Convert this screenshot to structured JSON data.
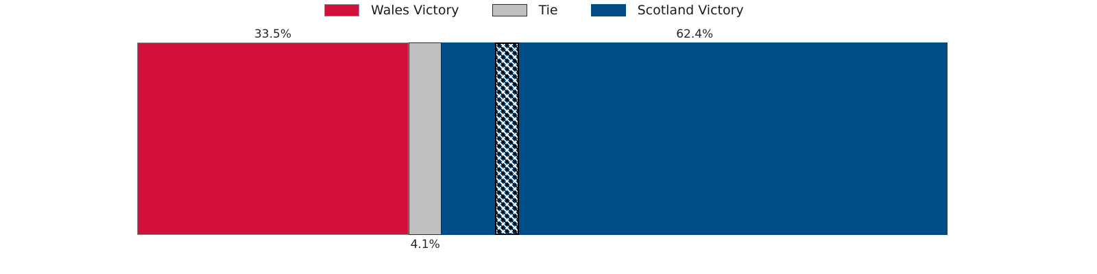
{
  "chart_data": {
    "type": "bar",
    "variant": "horizontal-stacked-single-bar",
    "title": "",
    "xlabel": "",
    "ylabel": "",
    "axes_visible": false,
    "legend_position": "top-center",
    "legend": [
      {
        "label": "Wales Victory",
        "color": "#d1113c",
        "border": "#909090"
      },
      {
        "label": "Tie",
        "color": "#c0c0c0",
        "border": "#2b2b2b"
      },
      {
        "label": "Scotland Victory",
        "color": "#004d87",
        "border": "#004d87"
      }
    ],
    "categories": [
      "Wales Victory",
      "Tie",
      "Scotland Victory"
    ],
    "values": [
      33.5,
      4.1,
      62.4
    ],
    "segments": [
      {
        "name": "Wales Victory",
        "value": 33.5,
        "label": "33.5%",
        "label_position": "above",
        "color": "#d1113c",
        "border": "#909090"
      },
      {
        "name": "Tie",
        "value": 4.1,
        "label": "4.1%",
        "label_position": "below",
        "color": "#c0c0c0",
        "border": "#2b2b2b"
      },
      {
        "name": "Scotland Victory",
        "value": 62.4,
        "label": "62.4%",
        "label_position": "above",
        "color": "#004d87",
        "border": "none"
      }
    ],
    "overlay_band": {
      "name": "hatched-band",
      "description": "cross-hatched vertical band inside Scotland segment",
      "start_pct": 44.2,
      "width_pct": 2.95,
      "fill_color": "#004d87",
      "hatch": "diagonal-cross black+white",
      "border_color": "#000000"
    }
  }
}
